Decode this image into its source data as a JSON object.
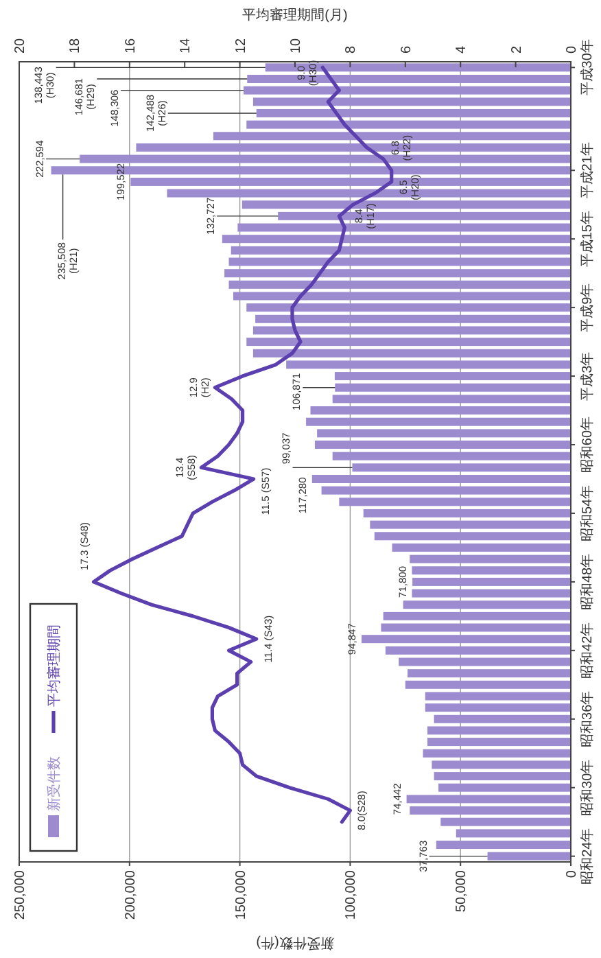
{
  "chart_data": {
    "type": "bar",
    "orientation": "horizontal",
    "xlabel": "新受件数(件)",
    "x2label": "平均審理期間(月)",
    "grid": "x",
    "legend": "bottom left",
    "xlim": [
      250000,
      0
    ],
    "xticks": [
      {
        "value": 250000,
        "label": "250,000"
      },
      {
        "value": 200000,
        "label": "200,000"
      },
      {
        "value": 150000,
        "label": "150,000"
      },
      {
        "value": 100000,
        "label": "100,000"
      },
      {
        "value": 50000,
        "label": "50,000"
      },
      0
    ],
    "x2lim": [
      20,
      0
    ],
    "x2ticks": [
      20,
      18,
      16,
      14,
      12,
      10,
      8,
      6,
      4,
      2,
      0
    ],
    "categories": [
      "平成30年",
      null,
      null,
      null,
      null,
      null,
      null,
      null,
      null,
      "平成21年",
      null,
      null,
      null,
      null,
      null,
      "平成15年",
      null,
      null,
      null,
      null,
      null,
      "平成9年",
      null,
      null,
      null,
      null,
      null,
      "平成3年",
      null,
      null,
      null,
      null,
      null,
      "昭和60年",
      null,
      null,
      null,
      null,
      null,
      "昭和54年",
      null,
      null,
      null,
      null,
      null,
      "昭和48年",
      null,
      null,
      null,
      null,
      null,
      "昭和42年",
      null,
      null,
      null,
      null,
      null,
      "昭和36年",
      null,
      null,
      null,
      null,
      null,
      "昭和30年",
      null,
      null,
      null,
      null,
      null,
      "昭和24年"
    ],
    "series": [
      {
        "name": "新受件数",
        "color": "#9c8ccf",
        "values": [
          138443,
          146681,
          148306,
          144000,
          142488,
          147000,
          162000,
          197000,
          222594,
          235508,
          199522,
          183000,
          149000,
          132727,
          151000,
          158000,
          154000,
          155000,
          157000,
          155000,
          153000,
          147000,
          143000,
          144000,
          147000,
          144000,
          129000,
          107000,
          106871,
          108000,
          118000,
          120000,
          115000,
          116000,
          108000,
          99037,
          117280,
          113000,
          105000,
          94000,
          91000,
          89000,
          81000,
          73000,
          72000,
          71800,
          72000,
          76000,
          85000,
          86000,
          94847,
          84000,
          78000,
          74000,
          75000,
          66000,
          66000,
          62000,
          65000,
          65000,
          67000,
          63000,
          62000,
          60000,
          74442,
          73000,
          59000,
          52000,
          61000,
          37763
        ],
        "value_labels": [
          "138,443 (H30)",
          "146,681 (H29)",
          "148,306",
          null,
          "142,488 (H26)",
          null,
          null,
          null,
          "222,594",
          "235,508 (H21)",
          "199,522",
          null,
          null,
          "132,727",
          null,
          null,
          null,
          null,
          null,
          null,
          null,
          null,
          null,
          null,
          null,
          null,
          null,
          null,
          "106,871",
          null,
          null,
          null,
          null,
          null,
          null,
          "99,037",
          "117,280",
          null,
          null,
          null,
          null,
          null,
          null,
          null,
          null,
          "71,800",
          null,
          null,
          null,
          null,
          "94,847",
          null,
          null,
          null,
          null,
          null,
          null,
          null,
          null,
          null,
          null,
          null,
          null,
          null,
          "74,442",
          null,
          null,
          null,
          null,
          "37,763"
        ]
      },
      {
        "name": "平均審理期間",
        "type": "line",
        "axis": "x2",
        "color": "#5b3fae",
        "values": [
          9.0,
          8.7,
          8.4,
          8.8,
          8.5,
          8.2,
          7.8,
          7.4,
          6.8,
          6.5,
          6.5,
          7.1,
          7.9,
          8.4,
          8.2,
          8.3,
          8.4,
          8.8,
          9.1,
          9.4,
          9.8,
          10.1,
          10.1,
          10.0,
          9.8,
          10.1,
          10.7,
          11.9,
          12.9,
          12.3,
          11.9,
          11.9,
          12.1,
          12.4,
          12.8,
          13.4,
          11.5,
          12.2,
          13.0,
          13.7,
          13.9,
          14.1,
          15.0,
          15.9,
          16.7,
          17.3,
          16.3,
          15.2,
          13.7,
          12.4,
          11.4,
          12.4,
          11.6,
          12.1,
          12.1,
          12.8,
          13.0,
          13.0,
          12.9,
          12.4,
          12.0,
          11.9,
          11.4,
          10.2,
          8.8,
          8.0,
          8.3,
          null,
          null,
          null
        ],
        "value_labels": [
          "9.0 (H30)",
          null,
          null,
          null,
          null,
          null,
          null,
          null,
          "6.8 (H22)",
          null,
          "6.5 (H20)",
          null,
          null,
          "8.4 (H17)",
          null,
          null,
          null,
          null,
          null,
          null,
          null,
          null,
          null,
          null,
          null,
          null,
          null,
          null,
          "12.9 (H2)",
          null,
          null,
          null,
          null,
          null,
          null,
          "13.4 (S58)",
          "11.5 (S57)",
          null,
          null,
          null,
          null,
          null,
          null,
          null,
          null,
          "17.3 (S48)",
          null,
          null,
          null,
          null,
          "11.4 (S43)",
          null,
          null,
          null,
          null,
          null,
          null,
          null,
          null,
          null,
          null,
          null,
          null,
          null,
          null,
          "8.0(S28)",
          null,
          null,
          null,
          null
        ]
      }
    ]
  }
}
